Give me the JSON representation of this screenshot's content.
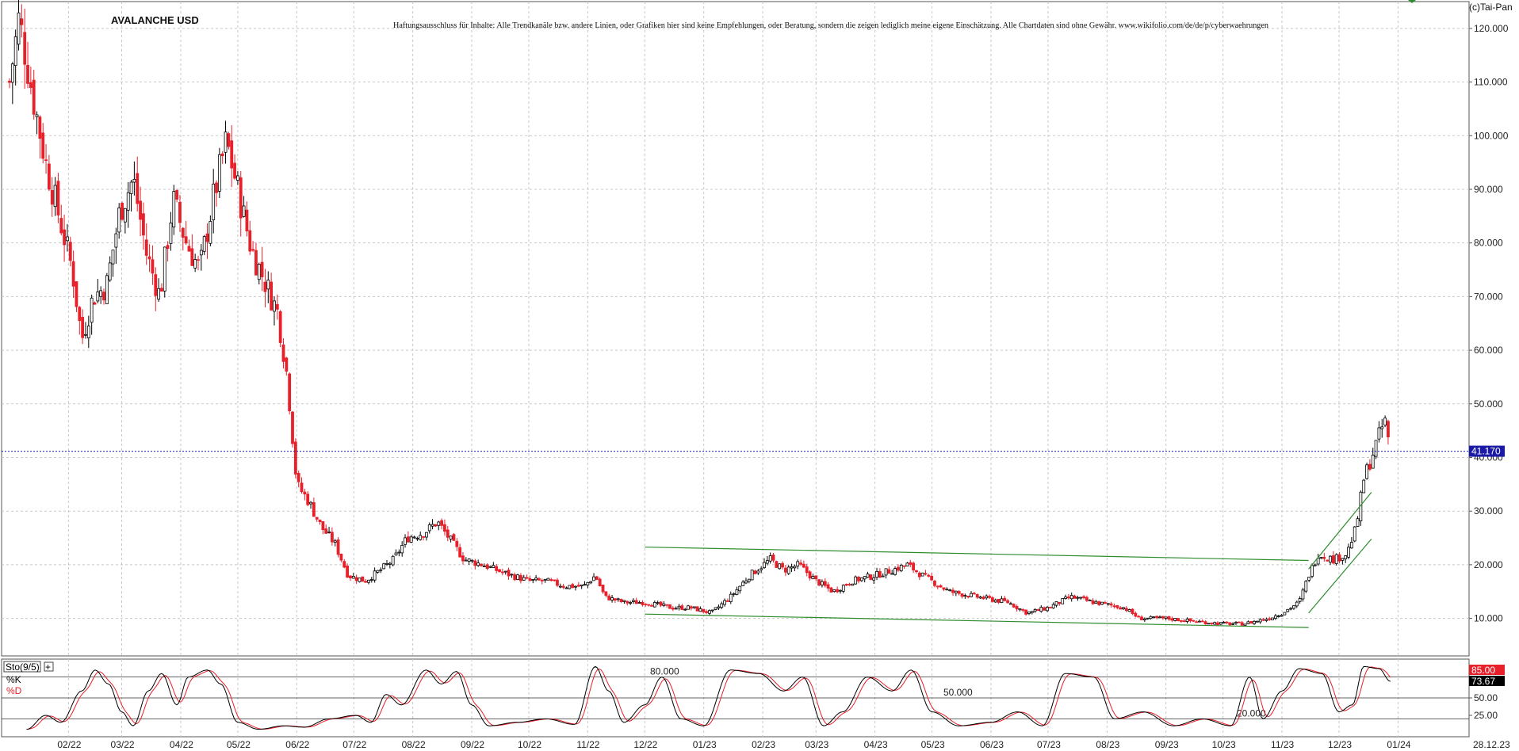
{
  "header": {
    "symbol": "AVALANCHE USD",
    "disclaimer": "Haftungsausschluss für Inhalte: Alle Trendkanäle bzw. andere Linien, oder Grafiken hier sind keine Empfehlungen, oder Beratung, sondern die zeigen lediglich meine eigene Einschätzung. Alle Chartdaten sind ohne Gewähr.  www.wikifolio.com/de/de/p/cyberwaehrungen",
    "copyright": "(c)Tai-Pan"
  },
  "colors": {
    "up_candle": "#000000",
    "down_candle": "#e8202a",
    "trendline": "#2e8b2e",
    "current_price_line": "#1a1aa6",
    "k_line": "#000000",
    "d_line": "#e8202a",
    "grid": "#c8c8c8"
  },
  "chart_data": [
    {
      "type": "candlestick",
      "title": "AVALANCHE USD",
      "x_tick_labels": [
        "02/22",
        "03/22",
        "04/22",
        "05/22",
        "06/22",
        "07/22",
        "08/22",
        "09/22",
        "10/22",
        "11/22",
        "12/22",
        "01/23",
        "02/23",
        "03/23",
        "04/23",
        "05/23",
        "06/23",
        "07/23",
        "08/23",
        "09/23",
        "10/23",
        "11/23",
        "12/23",
        "01/24"
      ],
      "x_axis_end_label": "28.12.23",
      "y_tick_labels": [
        "10.000",
        "20.000",
        "30.000",
        "40.000",
        "50.000",
        "60.000",
        "70.000",
        "80.000",
        "90.000",
        "100.000",
        "110.000",
        "120.000"
      ],
      "y_ticks": [
        10,
        20,
        30,
        40,
        50,
        60,
        70,
        80,
        90,
        100,
        110,
        120
      ],
      "ylim": [
        3,
        125
      ],
      "grid": true,
      "current_price": 41.17,
      "current_price_label": "41.170",
      "price_path": [
        {
          "date": "2022-01-01",
          "close": 110
        },
        {
          "date": "2022-01-06",
          "close": 122
        },
        {
          "date": "2022-01-13",
          "close": 108
        },
        {
          "date": "2022-01-20",
          "close": 95
        },
        {
          "date": "2022-01-27",
          "close": 85
        },
        {
          "date": "2022-02-03",
          "close": 75
        },
        {
          "date": "2022-02-08",
          "close": 62
        },
        {
          "date": "2022-02-14",
          "close": 70
        },
        {
          "date": "2022-02-21",
          "close": 72
        },
        {
          "date": "2022-02-28",
          "close": 86
        },
        {
          "date": "2022-03-07",
          "close": 92
        },
        {
          "date": "2022-03-14",
          "close": 78
        },
        {
          "date": "2022-03-21",
          "close": 70
        },
        {
          "date": "2022-03-28",
          "close": 88
        },
        {
          "date": "2022-04-04",
          "close": 80
        },
        {
          "date": "2022-04-11",
          "close": 75
        },
        {
          "date": "2022-04-18",
          "close": 88
        },
        {
          "date": "2022-04-25",
          "close": 99
        },
        {
          "date": "2022-05-01",
          "close": 90
        },
        {
          "date": "2022-05-08",
          "close": 79
        },
        {
          "date": "2022-05-15",
          "close": 73
        },
        {
          "date": "2022-05-22",
          "close": 67
        },
        {
          "date": "2022-05-27",
          "close": 55
        },
        {
          "date": "2022-06-01",
          "close": 35
        },
        {
          "date": "2022-06-07",
          "close": 32
        },
        {
          "date": "2022-06-14",
          "close": 27
        },
        {
          "date": "2022-06-21",
          "close": 24
        },
        {
          "date": "2022-06-28",
          "close": 18
        },
        {
          "date": "2022-07-07",
          "close": 17
        },
        {
          "date": "2022-07-15",
          "close": 19
        },
        {
          "date": "2022-07-22",
          "close": 21
        },
        {
          "date": "2022-07-29",
          "close": 25
        },
        {
          "date": "2022-08-07",
          "close": 26
        },
        {
          "date": "2022-08-14",
          "close": 28
        },
        {
          "date": "2022-08-20",
          "close": 25
        },
        {
          "date": "2022-08-28",
          "close": 21
        },
        {
          "date": "2022-09-07",
          "close": 20
        },
        {
          "date": "2022-09-14",
          "close": 19
        },
        {
          "date": "2022-09-22",
          "close": 18
        },
        {
          "date": "2022-10-01",
          "close": 17
        },
        {
          "date": "2022-10-10",
          "close": 17
        },
        {
          "date": "2022-10-20",
          "close": 16
        },
        {
          "date": "2022-10-30",
          "close": 16
        },
        {
          "date": "2022-11-05",
          "close": 18
        },
        {
          "date": "2022-11-10",
          "close": 14
        },
        {
          "date": "2022-11-20",
          "close": 13
        },
        {
          "date": "2022-12-01",
          "close": 13
        },
        {
          "date": "2022-12-15",
          "close": 12
        },
        {
          "date": "2022-12-25",
          "close": 12
        },
        {
          "date": "2023-01-05",
          "close": 11
        },
        {
          "date": "2023-01-15",
          "close": 14
        },
        {
          "date": "2023-01-25",
          "close": 18
        },
        {
          "date": "2023-02-05",
          "close": 21
        },
        {
          "date": "2023-02-12",
          "close": 19
        },
        {
          "date": "2023-02-20",
          "close": 20
        },
        {
          "date": "2023-03-01",
          "close": 17
        },
        {
          "date": "2023-03-10",
          "close": 15
        },
        {
          "date": "2023-03-20",
          "close": 17
        },
        {
          "date": "2023-04-01",
          "close": 18
        },
        {
          "date": "2023-04-10",
          "close": 19
        },
        {
          "date": "2023-04-18",
          "close": 20
        },
        {
          "date": "2023-04-26",
          "close": 18
        },
        {
          "date": "2023-05-10",
          "close": 15
        },
        {
          "date": "2023-05-25",
          "close": 14
        },
        {
          "date": "2023-06-10",
          "close": 13
        },
        {
          "date": "2023-06-20",
          "close": 11
        },
        {
          "date": "2023-07-01",
          "close": 12
        },
        {
          "date": "2023-07-13",
          "close": 14
        },
        {
          "date": "2023-07-25",
          "close": 13
        },
        {
          "date": "2023-08-10",
          "close": 12
        },
        {
          "date": "2023-08-18",
          "close": 10
        },
        {
          "date": "2023-09-01",
          "close": 10
        },
        {
          "date": "2023-09-15",
          "close": 9.5
        },
        {
          "date": "2023-10-01",
          "close": 9
        },
        {
          "date": "2023-10-12",
          "close": 9
        },
        {
          "date": "2023-10-25",
          "close": 10
        },
        {
          "date": "2023-11-01",
          "close": 11
        },
        {
          "date": "2023-11-10",
          "close": 13
        },
        {
          "date": "2023-11-15",
          "close": 18
        },
        {
          "date": "2023-11-20",
          "close": 22
        },
        {
          "date": "2023-11-28",
          "close": 21
        },
        {
          "date": "2023-12-05",
          "close": 22
        },
        {
          "date": "2023-12-10",
          "close": 27
        },
        {
          "date": "2023-12-14",
          "close": 36
        },
        {
          "date": "2023-12-18",
          "close": 40
        },
        {
          "date": "2023-12-22",
          "close": 44
        },
        {
          "date": "2023-12-25",
          "close": 47
        },
        {
          "date": "2023-12-28",
          "close": 41.17
        }
      ],
      "trendlines": [
        {
          "from": {
            "date": "2022-12-01",
            "value": 23.3
          },
          "to": {
            "date": "2023-11-15",
            "value": 20.8
          }
        },
        {
          "from": {
            "date": "2022-12-01",
            "value": 10.8
          },
          "to": {
            "date": "2023-11-15",
            "value": 8.3
          }
        },
        {
          "from": {
            "date": "2023-11-15",
            "value": 19.2
          },
          "to": {
            "date": "2023-12-18",
            "value": 33.5
          }
        },
        {
          "from": {
            "date": "2023-11-15",
            "value": 11.0
          },
          "to": {
            "date": "2023-12-18",
            "value": 24.8
          }
        }
      ]
    },
    {
      "type": "line",
      "title": "Sto(9/5)",
      "series": [
        {
          "name": "%K",
          "last_value": 73.67,
          "last_label": "73.67"
        },
        {
          "name": "%D",
          "last_value": 85.0,
          "last_label": "85.00"
        }
      ],
      "levels": [
        {
          "value": 80,
          "label": "80.000"
        },
        {
          "value": 50,
          "label": "50.000"
        },
        {
          "value": 20,
          "label": "20.000"
        }
      ],
      "y_tick_labels": [
        "25.00",
        "50.00",
        "75.00"
      ],
      "y_ticks": [
        25,
        50,
        75
      ],
      "ylim": [
        0,
        100
      ],
      "k_path": [
        {
          "date": "2022-01-10",
          "value": 5
        },
        {
          "date": "2022-01-20",
          "value": 25
        },
        {
          "date": "2022-01-28",
          "value": 15
        },
        {
          "date": "2022-02-08",
          "value": 60
        },
        {
          "date": "2022-02-15",
          "value": 90
        },
        {
          "date": "2022-02-22",
          "value": 70
        },
        {
          "date": "2022-03-01",
          "value": 30
        },
        {
          "date": "2022-03-07",
          "value": 10
        },
        {
          "date": "2022-03-15",
          "value": 60
        },
        {
          "date": "2022-03-22",
          "value": 85
        },
        {
          "date": "2022-03-30",
          "value": 40
        },
        {
          "date": "2022-04-05",
          "value": 80
        },
        {
          "date": "2022-04-15",
          "value": 90
        },
        {
          "date": "2022-04-22",
          "value": 70
        },
        {
          "date": "2022-05-01",
          "value": 15
        },
        {
          "date": "2022-05-12",
          "value": 5
        },
        {
          "date": "2022-05-25",
          "value": 10
        },
        {
          "date": "2022-06-05",
          "value": 8
        },
        {
          "date": "2022-06-18",
          "value": 20
        },
        {
          "date": "2022-07-02",
          "value": 25
        },
        {
          "date": "2022-07-10",
          "value": 15
        },
        {
          "date": "2022-07-18",
          "value": 55
        },
        {
          "date": "2022-07-26",
          "value": 40
        },
        {
          "date": "2022-08-08",
          "value": 90
        },
        {
          "date": "2022-08-16",
          "value": 70
        },
        {
          "date": "2022-08-24",
          "value": 88
        },
        {
          "date": "2022-09-01",
          "value": 40
        },
        {
          "date": "2022-09-10",
          "value": 10
        },
        {
          "date": "2022-09-25",
          "value": 15
        },
        {
          "date": "2022-10-10",
          "value": 20
        },
        {
          "date": "2022-10-25",
          "value": 12
        },
        {
          "date": "2022-11-05",
          "value": 95
        },
        {
          "date": "2022-11-12",
          "value": 60
        },
        {
          "date": "2022-11-20",
          "value": 15
        },
        {
          "date": "2022-12-01",
          "value": 40
        },
        {
          "date": "2022-12-10",
          "value": 80
        },
        {
          "date": "2022-12-20",
          "value": 20
        },
        {
          "date": "2023-01-01",
          "value": 10
        },
        {
          "date": "2023-01-15",
          "value": 90
        },
        {
          "date": "2023-01-30",
          "value": 85
        },
        {
          "date": "2023-02-12",
          "value": 60
        },
        {
          "date": "2023-02-22",
          "value": 80
        },
        {
          "date": "2023-03-05",
          "value": 10
        },
        {
          "date": "2023-03-15",
          "value": 30
        },
        {
          "date": "2023-03-28",
          "value": 80
        },
        {
          "date": "2023-04-10",
          "value": 60
        },
        {
          "date": "2023-04-20",
          "value": 90
        },
        {
          "date": "2023-05-01",
          "value": 30
        },
        {
          "date": "2023-05-15",
          "value": 10
        },
        {
          "date": "2023-06-01",
          "value": 15
        },
        {
          "date": "2023-06-15",
          "value": 30
        },
        {
          "date": "2023-06-28",
          "value": 10
        },
        {
          "date": "2023-07-10",
          "value": 85
        },
        {
          "date": "2023-07-25",
          "value": 80
        },
        {
          "date": "2023-08-05",
          "value": 20
        },
        {
          "date": "2023-08-20",
          "value": 30
        },
        {
          "date": "2023-09-05",
          "value": 10
        },
        {
          "date": "2023-09-20",
          "value": 20
        },
        {
          "date": "2023-10-05",
          "value": 10
        },
        {
          "date": "2023-10-15",
          "value": 80
        },
        {
          "date": "2023-10-22",
          "value": 20
        },
        {
          "date": "2023-11-01",
          "value": 60
        },
        {
          "date": "2023-11-10",
          "value": 92
        },
        {
          "date": "2023-11-22",
          "value": 85
        },
        {
          "date": "2023-12-01",
          "value": 30
        },
        {
          "date": "2023-12-08",
          "value": 40
        },
        {
          "date": "2023-12-14",
          "value": 95
        },
        {
          "date": "2023-12-22",
          "value": 92
        },
        {
          "date": "2023-12-28",
          "value": 73.67
        }
      ]
    }
  ]
}
